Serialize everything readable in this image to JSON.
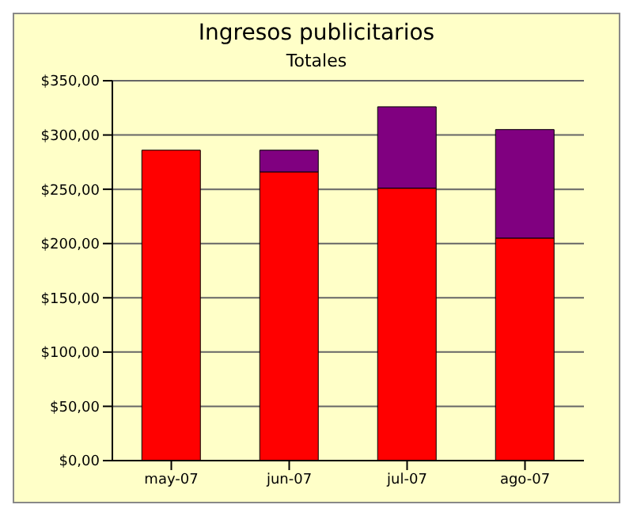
{
  "chart_data": {
    "type": "bar",
    "title": "Ingresos publicitarios",
    "subtitle": "Totales",
    "categories": [
      "may-07",
      "jun-07",
      "jul-07",
      "ago-07"
    ],
    "series": [
      {
        "color": "#ff0000",
        "values": [
          286,
          266,
          251,
          205
        ]
      },
      {
        "color": "#800080",
        "values": [
          0,
          20,
          75,
          100
        ]
      }
    ],
    "stacked": true,
    "ylim": [
      0,
      350
    ],
    "yticks": [
      {
        "value": 0,
        "label": "$0,00"
      },
      {
        "value": 50,
        "label": "$50,00"
      },
      {
        "value": 100,
        "label": "$100,00"
      },
      {
        "value": 150,
        "label": "$150,00"
      },
      {
        "value": 200,
        "label": "$200,00"
      },
      {
        "value": 250,
        "label": "$250,00"
      },
      {
        "value": 300,
        "label": "$300,00"
      },
      {
        "value": 350,
        "label": "$350,00"
      }
    ],
    "grid": "y"
  }
}
